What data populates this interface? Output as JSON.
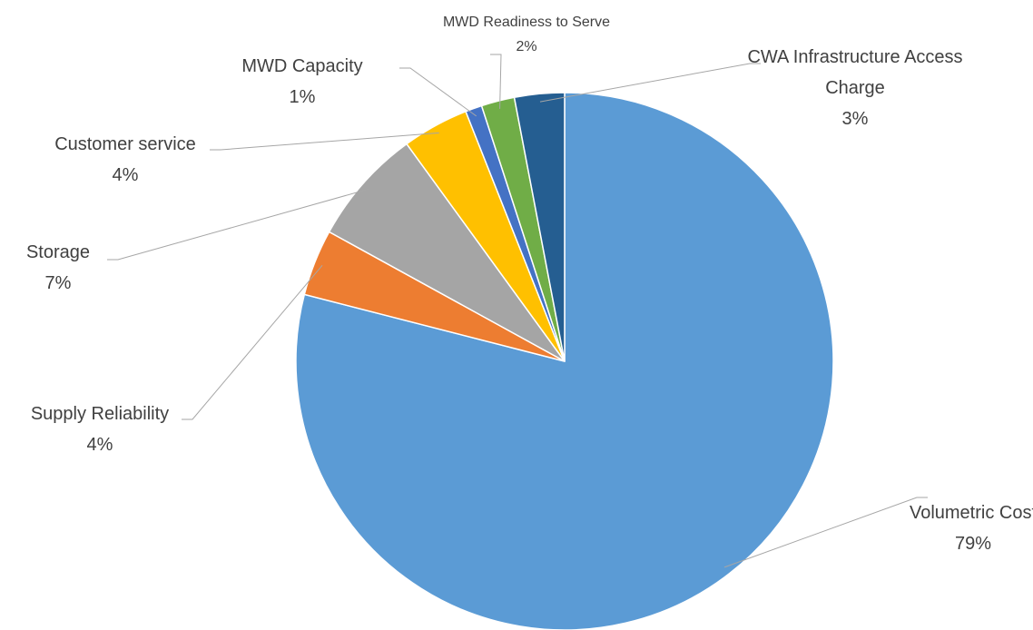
{
  "chart_data": {
    "type": "pie",
    "categories": [
      "Volumetric Cost",
      "Supply Reliability",
      "Storage",
      "Customer service",
      "MWD Capacity",
      "MWD Readiness to Serve",
      "CWA Infrastructure Access Charge"
    ],
    "values": [
      79,
      4,
      7,
      4,
      1,
      2,
      3
    ],
    "value_labels": [
      "79%",
      "4%",
      "7%",
      "4%",
      "1%",
      "2%",
      "3%"
    ],
    "colors": [
      "#5b9bd5",
      "#ed7d31",
      "#a5a5a5",
      "#ffc000",
      "#4472c4",
      "#70ad47",
      "#255e91"
    ]
  }
}
